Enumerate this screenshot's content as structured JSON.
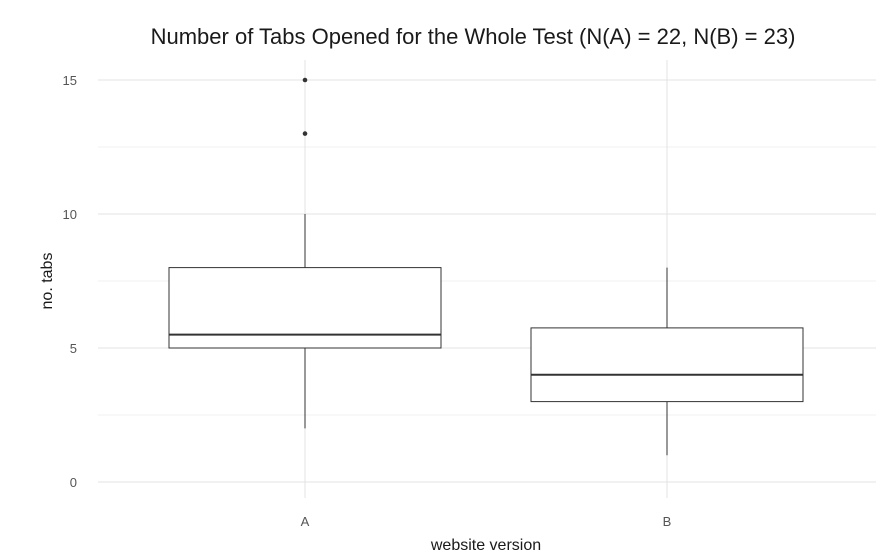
{
  "chart_data": {
    "type": "boxplot",
    "title": "Number of Tabs Opened for the Whole Test (N(A) = 22, N(B) = 23)",
    "xlabel": "website version",
    "ylabel": "no. tabs",
    "categories": [
      "A",
      "B"
    ],
    "ylim": [
      0,
      15.5
    ],
    "y_ticks": [
      0,
      5,
      10,
      15
    ],
    "y_tick_labels": [
      "0",
      "5",
      "10",
      "15"
    ],
    "grid": true,
    "legend": "none",
    "boxes": [
      {
        "category": "A",
        "whisker_low": 2,
        "q1": 5,
        "median": 5.5,
        "q3": 8,
        "whisker_high": 10,
        "outliers": [
          13,
          15
        ]
      },
      {
        "category": "B",
        "whisker_low": 1,
        "q1": 3,
        "median": 4,
        "q3": 5.75,
        "whisker_high": 8,
        "outliers": []
      }
    ],
    "colors": {
      "box_fill": "#ffffff",
      "box_stroke": "#333333",
      "grid_major": "#e3e3e3",
      "grid_minor": "#f0f0f0",
      "outlier": "#333333"
    }
  }
}
